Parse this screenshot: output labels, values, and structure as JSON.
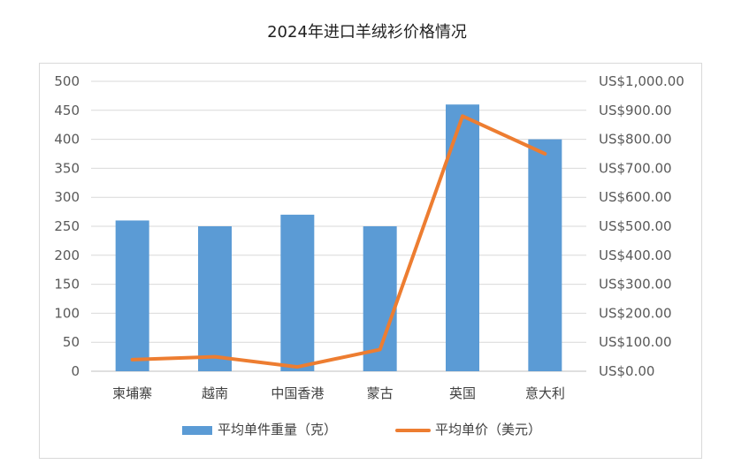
{
  "chart_data": {
    "type": "bar",
    "title": "2024年进口羊绒衫价格情况",
    "categories": [
      "柬埔寨",
      "越南",
      "中国香港",
      "蒙古",
      "英国",
      "意大利"
    ],
    "series": [
      {
        "name": "平均单件重量（克）",
        "type": "bar",
        "axis": "left",
        "color": "#5b9bd5",
        "values": [
          260,
          250,
          270,
          250,
          460,
          400
        ]
      },
      {
        "name": "平均单价（美元）",
        "type": "line",
        "axis": "right",
        "color": "#ed7d31",
        "values": [
          40,
          50,
          15,
          75,
          880,
          750
        ]
      }
    ],
    "y_left": {
      "min": 0,
      "max": 500,
      "step": 50,
      "ticks": [
        "0",
        "50",
        "100",
        "150",
        "200",
        "250",
        "300",
        "350",
        "400",
        "450",
        "500"
      ]
    },
    "y_right": {
      "min": 0,
      "max": 1000,
      "step": 100,
      "ticks": [
        "US$0.00",
        "US$100.00",
        "US$200.00",
        "US$300.00",
        "US$400.00",
        "US$500.00",
        "US$600.00",
        "US$700.00",
        "US$800.00",
        "US$900.00",
        "US$1,000.00"
      ]
    },
    "grid": true,
    "legend_position": "bottom"
  }
}
